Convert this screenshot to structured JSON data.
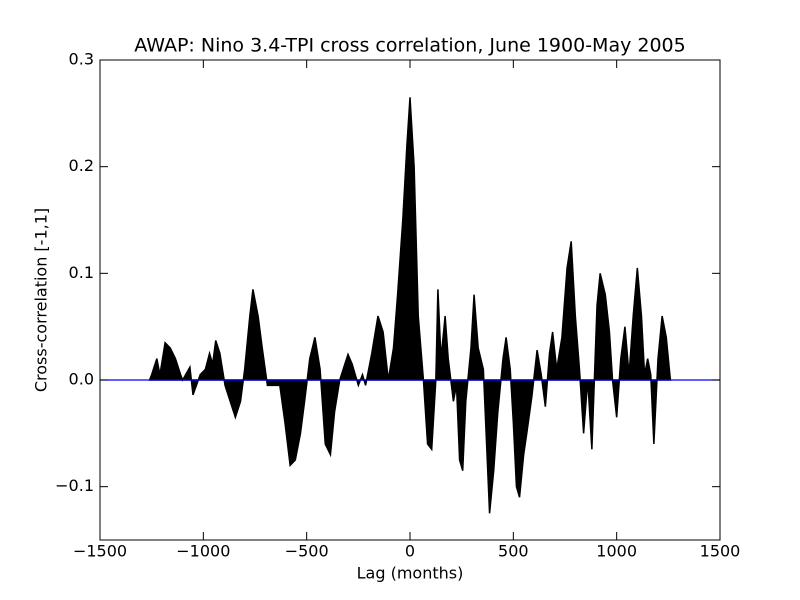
{
  "chart_data": {
    "type": "area",
    "title": "AWAP: Nino 3.4-TPI cross correlation, June 1900-May 2005",
    "x_label": "Lag (months)",
    "y_label": "Cross-correlation [-1,1]",
    "color": "#000000",
    "zero_line_color": "#0000ff",
    "xlim": [
      -1500,
      1500
    ],
    "ylim": [
      -0.15,
      0.3
    ],
    "xticks": [
      {
        "value": -1500,
        "label": "−1500"
      },
      {
        "value": -1000,
        "label": "−1000"
      },
      {
        "value": -500,
        "label": "−500"
      },
      0,
      500,
      1000,
      1500
    ],
    "yticks": [
      {
        "value": -0.1,
        "label": "−0.1"
      },
      {
        "value": 0,
        "label": "0.0"
      },
      0.1,
      0.2,
      0.3
    ],
    "x": [
      -1260,
      -1250,
      -1225,
      -1210,
      -1185,
      -1160,
      -1135,
      -1110,
      -1100,
      -1065,
      -1050,
      -1015,
      -990,
      -970,
      -955,
      -940,
      -920,
      -895,
      -870,
      -845,
      -820,
      -800,
      -775,
      -760,
      -735,
      -715,
      -690,
      -630,
      -605,
      -580,
      -555,
      -530,
      -510,
      -485,
      -460,
      -435,
      -410,
      -385,
      -365,
      -340,
      -315,
      -300,
      -280,
      -250,
      -230,
      -215,
      -185,
      -155,
      -130,
      -105,
      -80,
      -60,
      -35,
      -15,
      0,
      20,
      40,
      65,
      85,
      105,
      125,
      135,
      150,
      170,
      185,
      210,
      225,
      240,
      255,
      270,
      295,
      310,
      330,
      355,
      375,
      385,
      405,
      425,
      450,
      465,
      485,
      500,
      515,
      530,
      550,
      565,
      590,
      615,
      635,
      655,
      675,
      690,
      710,
      735,
      760,
      780,
      800,
      820,
      840,
      860,
      880,
      905,
      920,
      945,
      965,
      980,
      1000,
      1020,
      1040,
      1060,
      1080,
      1100,
      1120,
      1135,
      1150,
      1165,
      1180,
      1200,
      1220,
      1240,
      1260
    ],
    "values": [
      0.0,
      0.005,
      0.02,
      0.005,
      0.035,
      0.03,
      0.02,
      0.005,
      0.0,
      0.012,
      -0.014,
      0.005,
      0.01,
      0.025,
      0.015,
      0.037,
      0.025,
      -0.005,
      -0.02,
      -0.035,
      -0.02,
      0.01,
      0.06,
      0.085,
      0.06,
      0.03,
      -0.005,
      -0.005,
      -0.04,
      -0.08,
      -0.075,
      -0.05,
      -0.02,
      0.02,
      0.04,
      0.01,
      -0.06,
      -0.07,
      -0.03,
      0.0,
      0.015,
      0.024,
      0.015,
      -0.005,
      0.005,
      -0.005,
      0.025,
      0.06,
      0.045,
      0.0,
      0.03,
      0.08,
      0.15,
      0.22,
      0.265,
      0.2,
      0.06,
      0.0,
      -0.06,
      -0.065,
      0.0,
      0.085,
      0.02,
      0.06,
      0.02,
      -0.02,
      -0.005,
      -0.075,
      -0.085,
      -0.02,
      0.03,
      0.08,
      0.03,
      0.01,
      -0.08,
      -0.125,
      -0.085,
      -0.03,
      0.02,
      0.04,
      0.01,
      -0.04,
      -0.1,
      -0.11,
      -0.07,
      -0.05,
      -0.015,
      0.028,
      0.005,
      -0.025,
      0.025,
      0.045,
      0.01,
      0.04,
      0.105,
      0.13,
      0.06,
      0.01,
      -0.05,
      0.0,
      -0.065,
      0.07,
      0.1,
      0.08,
      0.045,
      0.0,
      -0.035,
      0.02,
      0.05,
      0.005,
      0.06,
      0.105,
      0.06,
      0.005,
      0.02,
      0.005,
      -0.06,
      0.02,
      0.06,
      0.04,
      0.0
    ]
  }
}
